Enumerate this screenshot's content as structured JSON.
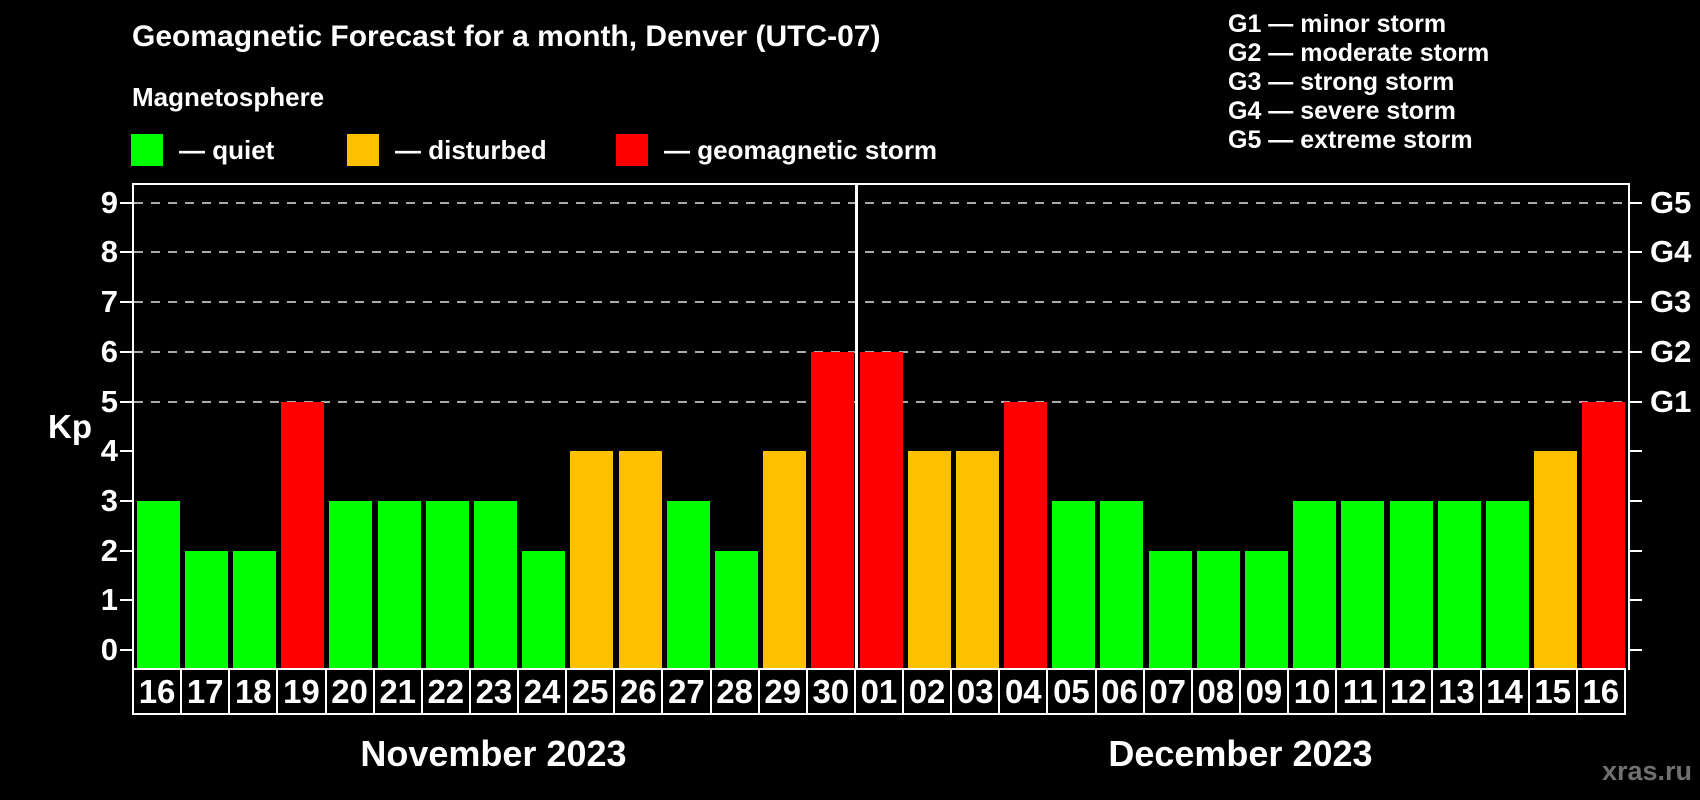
{
  "header": {
    "title": "Geomagnetic Forecast for a month, Denver (UTC-07)",
    "subtitle": "Magnetosphere",
    "legend": [
      {
        "status": "quiet",
        "label": "— quiet",
        "color": "#00ff00"
      },
      {
        "status": "disturbed",
        "label": "— disturbed",
        "color": "#ffc000"
      },
      {
        "status": "storm",
        "label": "— geomagnetic storm",
        "color": "#ff0000"
      }
    ],
    "storm_scale": [
      {
        "label": "G1 — minor storm"
      },
      {
        "label": "G2 — moderate storm"
      },
      {
        "label": "G3 — strong storm"
      },
      {
        "label": "G4 — severe storm"
      },
      {
        "label": "G5 — extreme storm"
      }
    ]
  },
  "chart_data": {
    "type": "bar",
    "title": "Geomagnetic Forecast for a month, Denver (UTC-07)",
    "ylabel": "Kp",
    "ylim": [
      0,
      9
    ],
    "yticks": [
      0,
      1,
      2,
      3,
      4,
      5,
      6,
      7,
      8,
      9
    ],
    "gridlines_at": [
      5,
      6,
      7,
      8,
      9
    ],
    "grid": "dashed horizontal lines at G-storm levels only",
    "legend_position": "top-left",
    "right_axis": [
      {
        "label": "G1",
        "value": 5
      },
      {
        "label": "G2",
        "value": 6
      },
      {
        "label": "G3",
        "value": 7
      },
      {
        "label": "G4",
        "value": 8
      },
      {
        "label": "G5",
        "value": 9
      }
    ],
    "colors": {
      "quiet": "#00ff00",
      "disturbed": "#ffc000",
      "storm": "#ff0000"
    },
    "months": [
      {
        "label": "November 2023",
        "days": [
          "16",
          "17",
          "18",
          "19",
          "20",
          "21",
          "22",
          "23",
          "24",
          "25",
          "26",
          "27",
          "28",
          "29",
          "30"
        ],
        "values": [
          3,
          2,
          2,
          5,
          3,
          3,
          3,
          3,
          2,
          4,
          4,
          3,
          2,
          4,
          6
        ],
        "statuses": [
          "quiet",
          "quiet",
          "quiet",
          "storm",
          "quiet",
          "quiet",
          "quiet",
          "quiet",
          "quiet",
          "disturbed",
          "disturbed",
          "quiet",
          "quiet",
          "disturbed",
          "storm"
        ]
      },
      {
        "label": "December 2023",
        "days": [
          "01",
          "02",
          "03",
          "04",
          "05",
          "06",
          "07",
          "08",
          "09",
          "10",
          "11",
          "12",
          "13",
          "14",
          "15",
          "16"
        ],
        "values": [
          6,
          4,
          4,
          5,
          3,
          3,
          2,
          2,
          2,
          3,
          3,
          3,
          3,
          3,
          4,
          5
        ],
        "statuses": [
          "storm",
          "disturbed",
          "disturbed",
          "storm",
          "quiet",
          "quiet",
          "quiet",
          "quiet",
          "quiet",
          "quiet",
          "quiet",
          "quiet",
          "quiet",
          "quiet",
          "disturbed",
          "storm"
        ]
      }
    ]
  },
  "watermark": "xras.ru"
}
